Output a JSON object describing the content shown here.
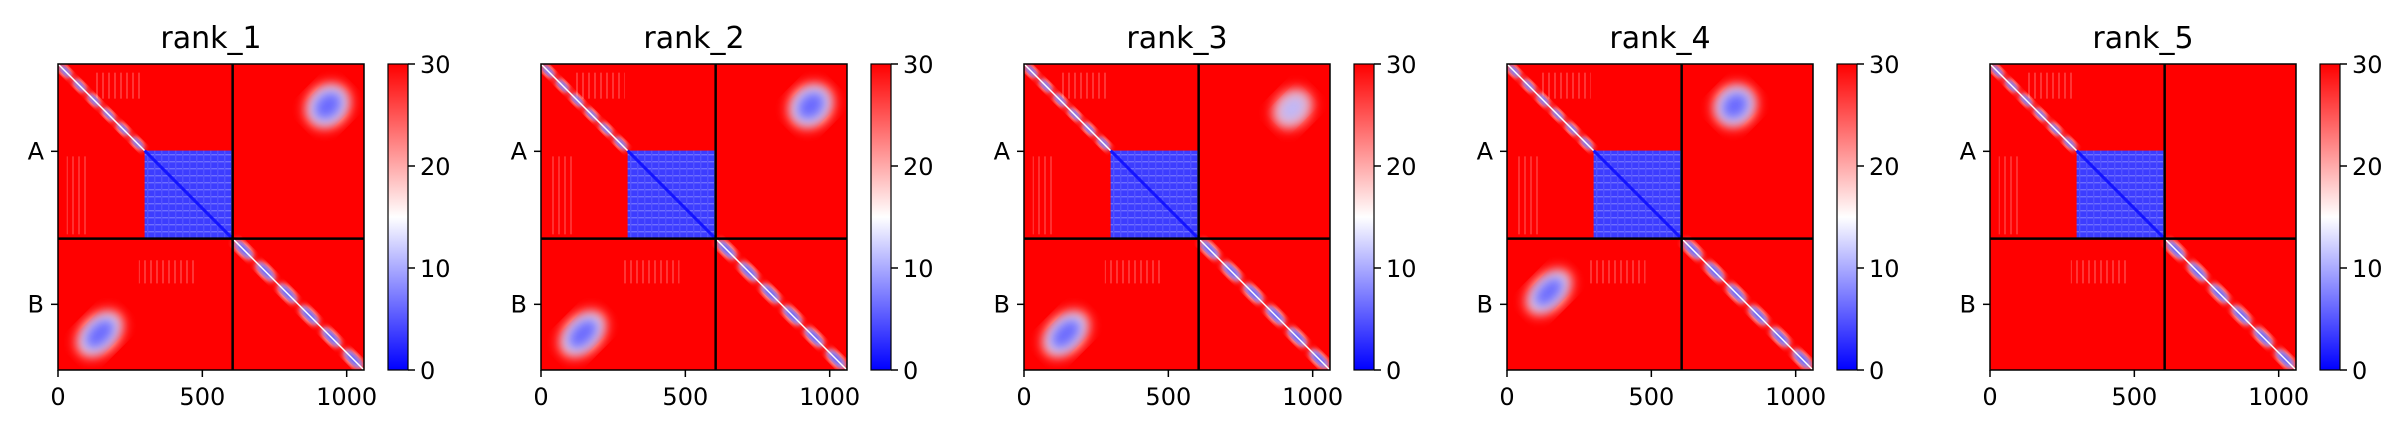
{
  "figure": {
    "description_kind": "PAE heatmap grid"
  },
  "chart_data": [
    {
      "type": "heatmap",
      "title": "rank_1",
      "x_ticks": [
        0,
        500,
        1000
      ],
      "x_max": 1060,
      "chain_boundary": 605,
      "chains": [
        "A",
        "B"
      ],
      "colorbar": {
        "min": 0,
        "max": 30,
        "ticks": [
          0,
          10,
          20,
          30
        ],
        "colormap": "bwr",
        "colors": [
          "#0000ff",
          "#ffffff",
          "#ff0000"
        ]
      },
      "blue_blocks": [
        {
          "chains": "A-A",
          "range": [
            0,
            300
          ],
          "style": "diagonal-band"
        },
        {
          "chains": "A-A",
          "range": [
            300,
            605
          ],
          "style": "dense-block"
        },
        {
          "chains": "A-B",
          "x_range": [
            860,
            1010
          ],
          "y_range": [
            60,
            230
          ],
          "style": "blob"
        },
        {
          "chains": "B-A",
          "x_range": [
            60,
            230
          ],
          "y_range": [
            860,
            1010
          ],
          "style": "blob"
        },
        {
          "chains": "B-B",
          "range": [
            605,
            1060
          ],
          "style": "diagonal-band"
        }
      ]
    },
    {
      "type": "heatmap",
      "title": "rank_2",
      "x_ticks": [
        0,
        500,
        1000
      ],
      "x_max": 1060,
      "chain_boundary": 605,
      "chains": [
        "A",
        "B"
      ],
      "colorbar": {
        "min": 0,
        "max": 30,
        "ticks": [
          0,
          10,
          20,
          30
        ],
        "colormap": "bwr",
        "colors": [
          "#0000ff",
          "#ffffff",
          "#ff0000"
        ]
      },
      "blue_blocks": [
        {
          "chains": "A-A",
          "range": [
            0,
            300
          ],
          "style": "diagonal-band"
        },
        {
          "chains": "A-A",
          "range": [
            300,
            605
          ],
          "style": "dense-block"
        },
        {
          "chains": "A-B",
          "x_range": [
            860,
            1010
          ],
          "y_range": [
            60,
            230
          ],
          "style": "blob"
        },
        {
          "chains": "B-A",
          "x_range": [
            60,
            230
          ],
          "y_range": [
            860,
            1010
          ],
          "style": "blob"
        },
        {
          "chains": "B-B",
          "range": [
            605,
            1060
          ],
          "style": "diagonal-band"
        }
      ]
    },
    {
      "type": "heatmap",
      "title": "rank_3",
      "x_ticks": [
        0,
        500,
        1000
      ],
      "x_max": 1060,
      "chain_boundary": 605,
      "chains": [
        "A",
        "B"
      ],
      "colorbar": {
        "min": 0,
        "max": 30,
        "ticks": [
          0,
          10,
          20,
          30
        ],
        "colormap": "bwr",
        "colors": [
          "#0000ff",
          "#ffffff",
          "#ff0000"
        ]
      },
      "blue_blocks": [
        {
          "chains": "A-A",
          "range": [
            0,
            300
          ],
          "style": "diagonal-band"
        },
        {
          "chains": "A-A",
          "range": [
            300,
            605
          ],
          "style": "dense-block"
        },
        {
          "chains": "A-B",
          "x_range": [
            860,
            1000
          ],
          "y_range": [
            80,
            230
          ],
          "style": "faint-blob"
        },
        {
          "chains": "B-A",
          "x_range": [
            60,
            230
          ],
          "y_range": [
            860,
            1010
          ],
          "style": "blob"
        },
        {
          "chains": "B-B",
          "range": [
            605,
            1060
          ],
          "style": "diagonal-band"
        }
      ]
    },
    {
      "type": "heatmap",
      "title": "rank_4",
      "x_ticks": [
        0,
        500,
        1000
      ],
      "x_max": 1060,
      "chain_boundary": 605,
      "chains": [
        "A",
        "B"
      ],
      "colorbar": {
        "min": 0,
        "max": 30,
        "ticks": [
          0,
          10,
          20,
          30
        ],
        "colormap": "bwr",
        "colors": [
          "#0000ff",
          "#ffffff",
          "#ff0000"
        ]
      },
      "blue_blocks": [
        {
          "chains": "A-A",
          "range": [
            0,
            300
          ],
          "style": "diagonal-band"
        },
        {
          "chains": "A-A",
          "range": [
            300,
            605
          ],
          "style": "dense-block"
        },
        {
          "chains": "A-B",
          "x_range": [
            720,
            860
          ],
          "y_range": [
            60,
            230
          ],
          "style": "blob"
        },
        {
          "chains": "B-A",
          "x_range": [
            60,
            230
          ],
          "y_range": [
            720,
            860
          ],
          "style": "blob"
        },
        {
          "chains": "B-B",
          "range": [
            605,
            1060
          ],
          "style": "diagonal-band"
        }
      ]
    },
    {
      "type": "heatmap",
      "title": "rank_5",
      "x_ticks": [
        0,
        500,
        1000
      ],
      "x_max": 1060,
      "chain_boundary": 605,
      "chains": [
        "A",
        "B"
      ],
      "colorbar": {
        "min": 0,
        "max": 30,
        "ticks": [
          0,
          10,
          20,
          30
        ],
        "colormap": "bwr",
        "colors": [
          "#0000ff",
          "#ffffff",
          "#ff0000"
        ]
      },
      "blue_blocks": [
        {
          "chains": "A-A",
          "range": [
            0,
            300
          ],
          "style": "diagonal-band"
        },
        {
          "chains": "A-A",
          "range": [
            300,
            605
          ],
          "style": "dense-block"
        },
        {
          "chains": "B-B",
          "range": [
            605,
            1060
          ],
          "style": "diagonal-band"
        }
      ]
    }
  ]
}
